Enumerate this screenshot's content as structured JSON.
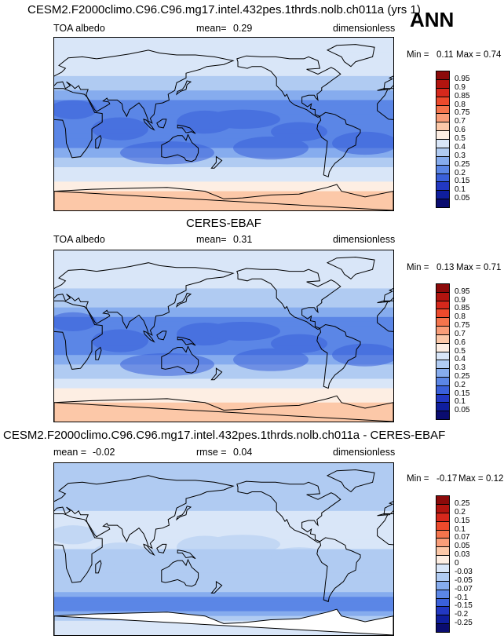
{
  "season": "ANN",
  "panels": [
    {
      "title": "CESM2.F2000climo.C96.C96.mg17.intel.432pes.1thrds.nolb.ch011a (yrs 1)",
      "left_label": "TOA albedo",
      "stat1_label": "mean=",
      "stat1_value": "0.29",
      "units": "dimensionless",
      "min_label": "Min =",
      "min_value": "0.11",
      "max_label": "Max =",
      "max_value": "0.74"
    },
    {
      "title": "CERES-EBAF",
      "left_label": "TOA albedo",
      "stat1_label": "mean=",
      "stat1_value": "0.31",
      "units": "dimensionless",
      "min_label": "Min =",
      "min_value": "0.13",
      "max_label": "Max =",
      "max_value": "0.71"
    },
    {
      "title": "CESM2.F2000climo.C96.C96.mg17.intel.432pes.1thrds.nolb.ch011a - CERES-EBAF",
      "left_label": "mean =",
      "left_value": "-0.02",
      "stat1_label": "rmse =",
      "stat1_value": "0.04",
      "units": "dimensionless",
      "min_label": "Min =",
      "min_value": "-0.17",
      "max_label": "Max =",
      "max_value": "0.12"
    }
  ],
  "chart_data": [
    {
      "type": "heatmap",
      "title": "CESM2.F2000climo.C96.C96.mg17.intel.432pes.1thrds.nolb.ch011a (yrs 1)",
      "variable": "TOA albedo",
      "units": "dimensionless",
      "mean": 0.29,
      "min": 0.11,
      "max": 0.74,
      "colorbar_levels": [
        "0.95",
        "0.9",
        "0.85",
        "0.8",
        "0.75",
        "0.7",
        "0.6",
        "0.5",
        "0.4",
        "0.3",
        "0.25",
        "0.2",
        "0.15",
        "0.1",
        "0.05"
      ],
      "colorbar_colors": [
        "#8c0a0a",
        "#b2140f",
        "#d6281c",
        "#ec4a2c",
        "#f4744c",
        "#f99d78",
        "#fcc8a8",
        "#fdeee3",
        "#d9e6f8",
        "#b0cbf2",
        "#86acee",
        "#5b86e6",
        "#3a60da",
        "#2238c2",
        "#0f1e9e",
        "#0a0c70"
      ],
      "latitude_band_values": [
        {
          "lat": 80,
          "value": 0.5
        },
        {
          "lat": 60,
          "value": 0.45
        },
        {
          "lat": 40,
          "value": 0.35
        },
        {
          "lat": 20,
          "value": 0.2
        },
        {
          "lat": 0,
          "value": 0.25
        },
        {
          "lat": -20,
          "value": 0.2
        },
        {
          "lat": -40,
          "value": 0.35
        },
        {
          "lat": -60,
          "value": 0.5
        },
        {
          "lat": -80,
          "value": 0.7
        }
      ]
    },
    {
      "type": "heatmap",
      "title": "CERES-EBAF",
      "variable": "TOA albedo",
      "units": "dimensionless",
      "mean": 0.31,
      "min": 0.13,
      "max": 0.71,
      "colorbar_levels": [
        "0.95",
        "0.9",
        "0.85",
        "0.8",
        "0.75",
        "0.7",
        "0.6",
        "0.5",
        "0.4",
        "0.3",
        "0.25",
        "0.2",
        "0.15",
        "0.1",
        "0.05"
      ],
      "colorbar_colors": [
        "#8c0a0a",
        "#b2140f",
        "#d6281c",
        "#ec4a2c",
        "#f4744c",
        "#f99d78",
        "#fcc8a8",
        "#fdeee3",
        "#d9e6f8",
        "#b0cbf2",
        "#86acee",
        "#5b86e6",
        "#3a60da",
        "#2238c2",
        "#0f1e9e",
        "#0a0c70"
      ],
      "latitude_band_values": [
        {
          "lat": 80,
          "value": 0.5
        },
        {
          "lat": 60,
          "value": 0.45
        },
        {
          "lat": 40,
          "value": 0.35
        },
        {
          "lat": 20,
          "value": 0.25
        },
        {
          "lat": 0,
          "value": 0.25
        },
        {
          "lat": -20,
          "value": 0.25
        },
        {
          "lat": -40,
          "value": 0.35
        },
        {
          "lat": -60,
          "value": 0.55
        },
        {
          "lat": -80,
          "value": 0.65
        }
      ]
    },
    {
      "type": "heatmap",
      "title": "CESM2.F2000climo.C96.C96.mg17.intel.432pes.1thrds.nolb.ch011a - CERES-EBAF",
      "units": "dimensionless",
      "mean": -0.02,
      "rmse": 0.04,
      "min": -0.17,
      "max": 0.12,
      "colorbar_levels": [
        "0.25",
        "0.2",
        "0.15",
        "0.1",
        "0.07",
        "0.05",
        "0.03",
        "0",
        "-0.03",
        "-0.05",
        "-0.07",
        "-0.1",
        "-0.15",
        "-0.2",
        "-0.25"
      ],
      "colorbar_colors": [
        "#8c0a0a",
        "#b2140f",
        "#d6281c",
        "#ec4a2c",
        "#f4744c",
        "#f99d78",
        "#fcc8a8",
        "#fdeee3",
        "#d9e6f8",
        "#b0cbf2",
        "#86acee",
        "#5b86e6",
        "#3a60da",
        "#2238c2",
        "#0f1e9e",
        "#0a0c70"
      ],
      "latitude_band_values": [
        {
          "lat": 80,
          "value": -0.03
        },
        {
          "lat": 60,
          "value": -0.03
        },
        {
          "lat": 40,
          "value": -0.03
        },
        {
          "lat": 20,
          "value": 0.0
        },
        {
          "lat": 0,
          "value": -0.03
        },
        {
          "lat": -20,
          "value": -0.03
        },
        {
          "lat": -40,
          "value": -0.03
        },
        {
          "lat": -60,
          "value": -0.1
        },
        {
          "lat": -80,
          "value": 0.0
        }
      ]
    }
  ]
}
